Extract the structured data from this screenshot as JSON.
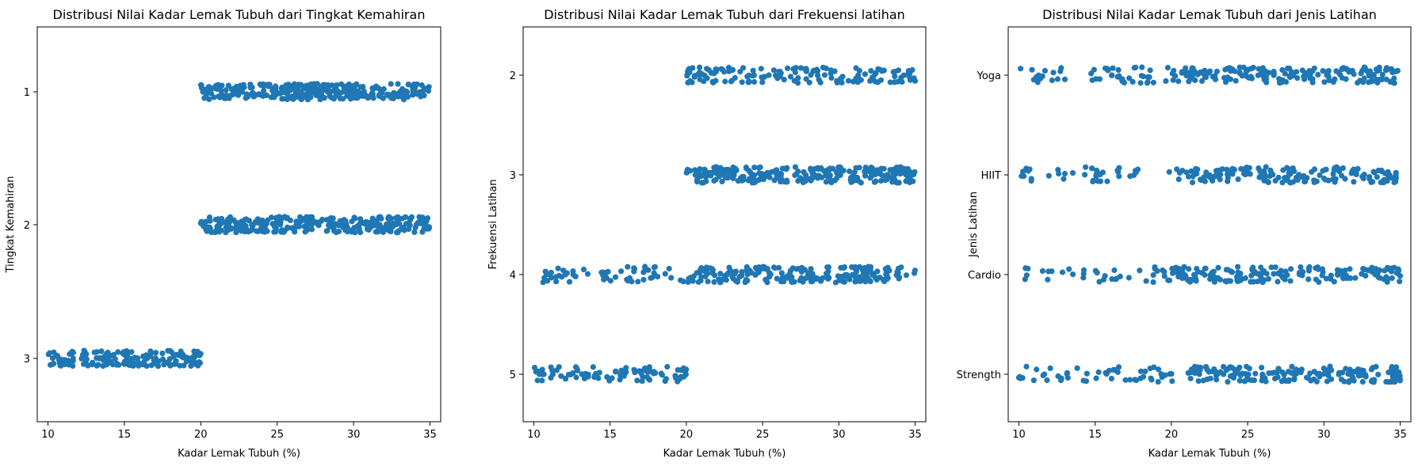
{
  "chart_data": [
    {
      "type": "scatter",
      "subtype": "strip",
      "title": "Distribusi Nilai Kadar Lemak Tubuh dari Tingkat Kemahiran",
      "xlabel": "Kadar Lemak Tubuh (%)",
      "ylabel": "Tingkat Kemahiran",
      "xlim": [
        9.3,
        35.7
      ],
      "xticks": [
        10,
        15,
        20,
        25,
        30,
        35
      ],
      "color": "#1f77b4",
      "grid": false,
      "categories": [
        "1",
        "2",
        "3"
      ],
      "groups": [
        {
          "category": "1",
          "range": [
            20,
            35
          ],
          "points": 330,
          "density": "denser around 25-30"
        },
        {
          "category": "2",
          "range": [
            20,
            35
          ],
          "points": 300,
          "density": "uniform"
        },
        {
          "category": "3",
          "range": [
            10,
            20
          ],
          "points": 170,
          "density": "uniform"
        }
      ]
    },
    {
      "type": "scatter",
      "subtype": "strip",
      "title": "Distribusi Nilai Kadar Lemak Tubuh dari Frekuensi latihan",
      "xlabel": "Kadar Lemak Tubuh (%)",
      "ylabel": "Frekuensi Latihan",
      "xlim": [
        9.3,
        35.7
      ],
      "xticks": [
        10,
        15,
        20,
        25,
        30,
        35
      ],
      "color": "#1f77b4",
      "grid": false,
      "categories": [
        "2",
        "3",
        "4",
        "5"
      ],
      "groups": [
        {
          "category": "2",
          "range": [
            20,
            35
          ],
          "points": 150,
          "density": "uniform"
        },
        {
          "category": "3",
          "range": [
            20,
            35
          ],
          "points": 280,
          "density": "uniform"
        },
        {
          "category": "4",
          "range": [
            10,
            35
          ],
          "points": 260,
          "density": "denser above 20"
        },
        {
          "category": "5",
          "range": [
            10,
            20
          ],
          "points": 90,
          "density": "uniform"
        }
      ]
    },
    {
      "type": "scatter",
      "subtype": "strip",
      "title": "Distribusi Nilai Kadar Lemak Tubuh dari Jenis Latihan",
      "xlabel": "Kadar Lemak Tubuh (%)",
      "ylabel": "Jenis Latihan",
      "xlim": [
        9.3,
        35.7
      ],
      "xticks": [
        10,
        15,
        20,
        25,
        30,
        35
      ],
      "color": "#1f77b4",
      "grid": false,
      "categories": [
        "Yoga",
        "HIIT",
        "Cardio",
        "Strength"
      ],
      "groups": [
        {
          "category": "Yoga",
          "range": [
            10,
            35
          ],
          "points": 230,
          "density": "denser above 20"
        },
        {
          "category": "HIIT",
          "range": [
            10,
            35
          ],
          "points": 200,
          "density": "sparse below 20, gap near 18-19"
        },
        {
          "category": "Cardio",
          "range": [
            10,
            35
          ],
          "points": 210,
          "density": "sparse below 20"
        },
        {
          "category": "Strength",
          "range": [
            10,
            35
          ],
          "points": 220,
          "density": "sparse below 20"
        }
      ]
    }
  ]
}
